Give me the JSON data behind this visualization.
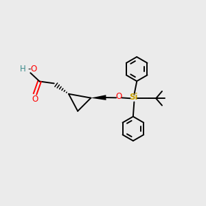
{
  "background_color": "#ebebeb",
  "bond_color": "#000000",
  "O_color": "#ff0000",
  "H_color": "#3a8a8a",
  "Si_color": "#c8a000",
  "figsize": [
    3.0,
    3.0
  ],
  "dpi": 100,
  "xlim": [
    0,
    10
  ],
  "ylim": [
    0,
    10
  ]
}
